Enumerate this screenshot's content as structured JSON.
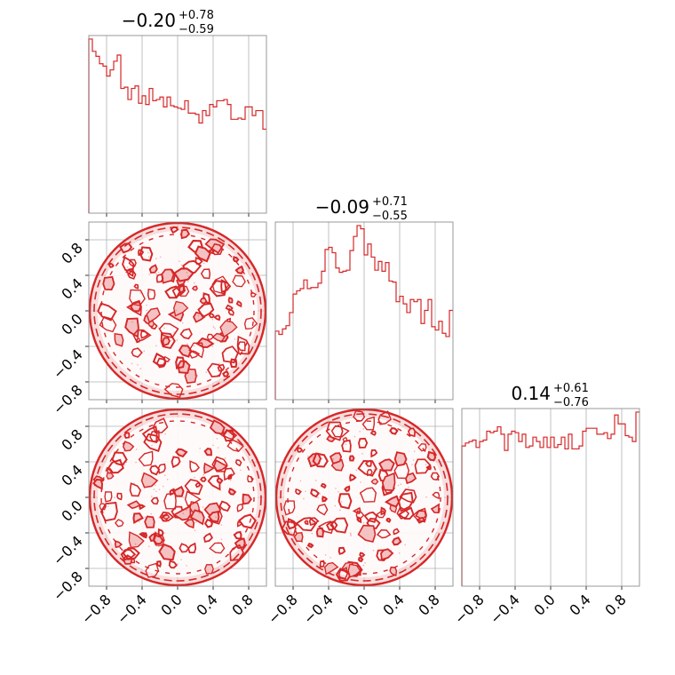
{
  "chart_data": {
    "type": "corner",
    "color": "#d62728",
    "fill_color": "#f4c2c2",
    "grid": true,
    "xlim": [
      -1.0,
      1.0
    ],
    "ylim": [
      -1.0,
      1.0
    ],
    "tick_values": [
      -0.8,
      -0.4,
      0.0,
      0.4,
      0.8
    ],
    "tick_labels": [
      "−0.8",
      "−0.4",
      "0.0",
      "0.4",
      "0.8"
    ],
    "titles": [
      {
        "median": "−0.20",
        "upper": "+0.78",
        "lower": "−0.59"
      },
      {
        "median": "−0.09",
        "upper": "+0.71",
        "lower": "−0.55"
      },
      {
        "median": "0.14",
        "upper": "+0.61",
        "lower": "−0.76"
      }
    ],
    "histograms": [
      {
        "variable": 0,
        "bins": 50,
        "range": [
          -1.0,
          1.0
        ],
        "counts": [
          141,
          131,
          127,
          121,
          119,
          111,
          116,
          123,
          128,
          101,
          102,
          92,
          101,
          103,
          89,
          95,
          88,
          101,
          91,
          92,
          94,
          86,
          94,
          87,
          86,
          85,
          84,
          91,
          81,
          81,
          80,
          73,
          83,
          79,
          88,
          86,
          91,
          91,
          92,
          88,
          76,
          76,
          77,
          76,
          86,
          86,
          79,
          83,
          83,
          68
        ]
      },
      {
        "variable": 1,
        "bins": 50,
        "range": [
          -1.0,
          1.0
        ],
        "counts": [
          63,
          60,
          65,
          68,
          80,
          97,
          100,
          102,
          110,
          102,
          103,
          103,
          107,
          118,
          138,
          140,
          135,
          121,
          117,
          118,
          119,
          137,
          150,
          160,
          157,
          133,
          143,
          131,
          119,
          127,
          118,
          126,
          109,
          108,
          90,
          95,
          88,
          80,
          92,
          90,
          92,
          70,
          82,
          92,
          67,
          64,
          72,
          61,
          58,
          82
        ]
      },
      {
        "variable": 2,
        "bins": 50,
        "range": [
          -1.0,
          1.0
        ],
        "counts": [
          95,
          97,
          98,
          99,
          94,
          98,
          99,
          105,
          104,
          105,
          108,
          103,
          92,
          103,
          105,
          104,
          98,
          103,
          94,
          95,
          101,
          98,
          94,
          101,
          94,
          101,
          94,
          96,
          101,
          93,
          103,
          93,
          93,
          95,
          105,
          107,
          107,
          107,
          103,
          103,
          104,
          100,
          103,
          116,
          110,
          110,
          102,
          101,
          98,
          118
        ]
      }
    ],
    "contours_2d": [
      {
        "x_variable": 0,
        "y_variable": 1,
        "shape": "disk",
        "radius": 1.0
      },
      {
        "x_variable": 0,
        "y_variable": 2,
        "shape": "disk",
        "radius": 1.0
      },
      {
        "x_variable": 1,
        "y_variable": 2,
        "shape": "disk",
        "radius": 1.0
      }
    ]
  }
}
